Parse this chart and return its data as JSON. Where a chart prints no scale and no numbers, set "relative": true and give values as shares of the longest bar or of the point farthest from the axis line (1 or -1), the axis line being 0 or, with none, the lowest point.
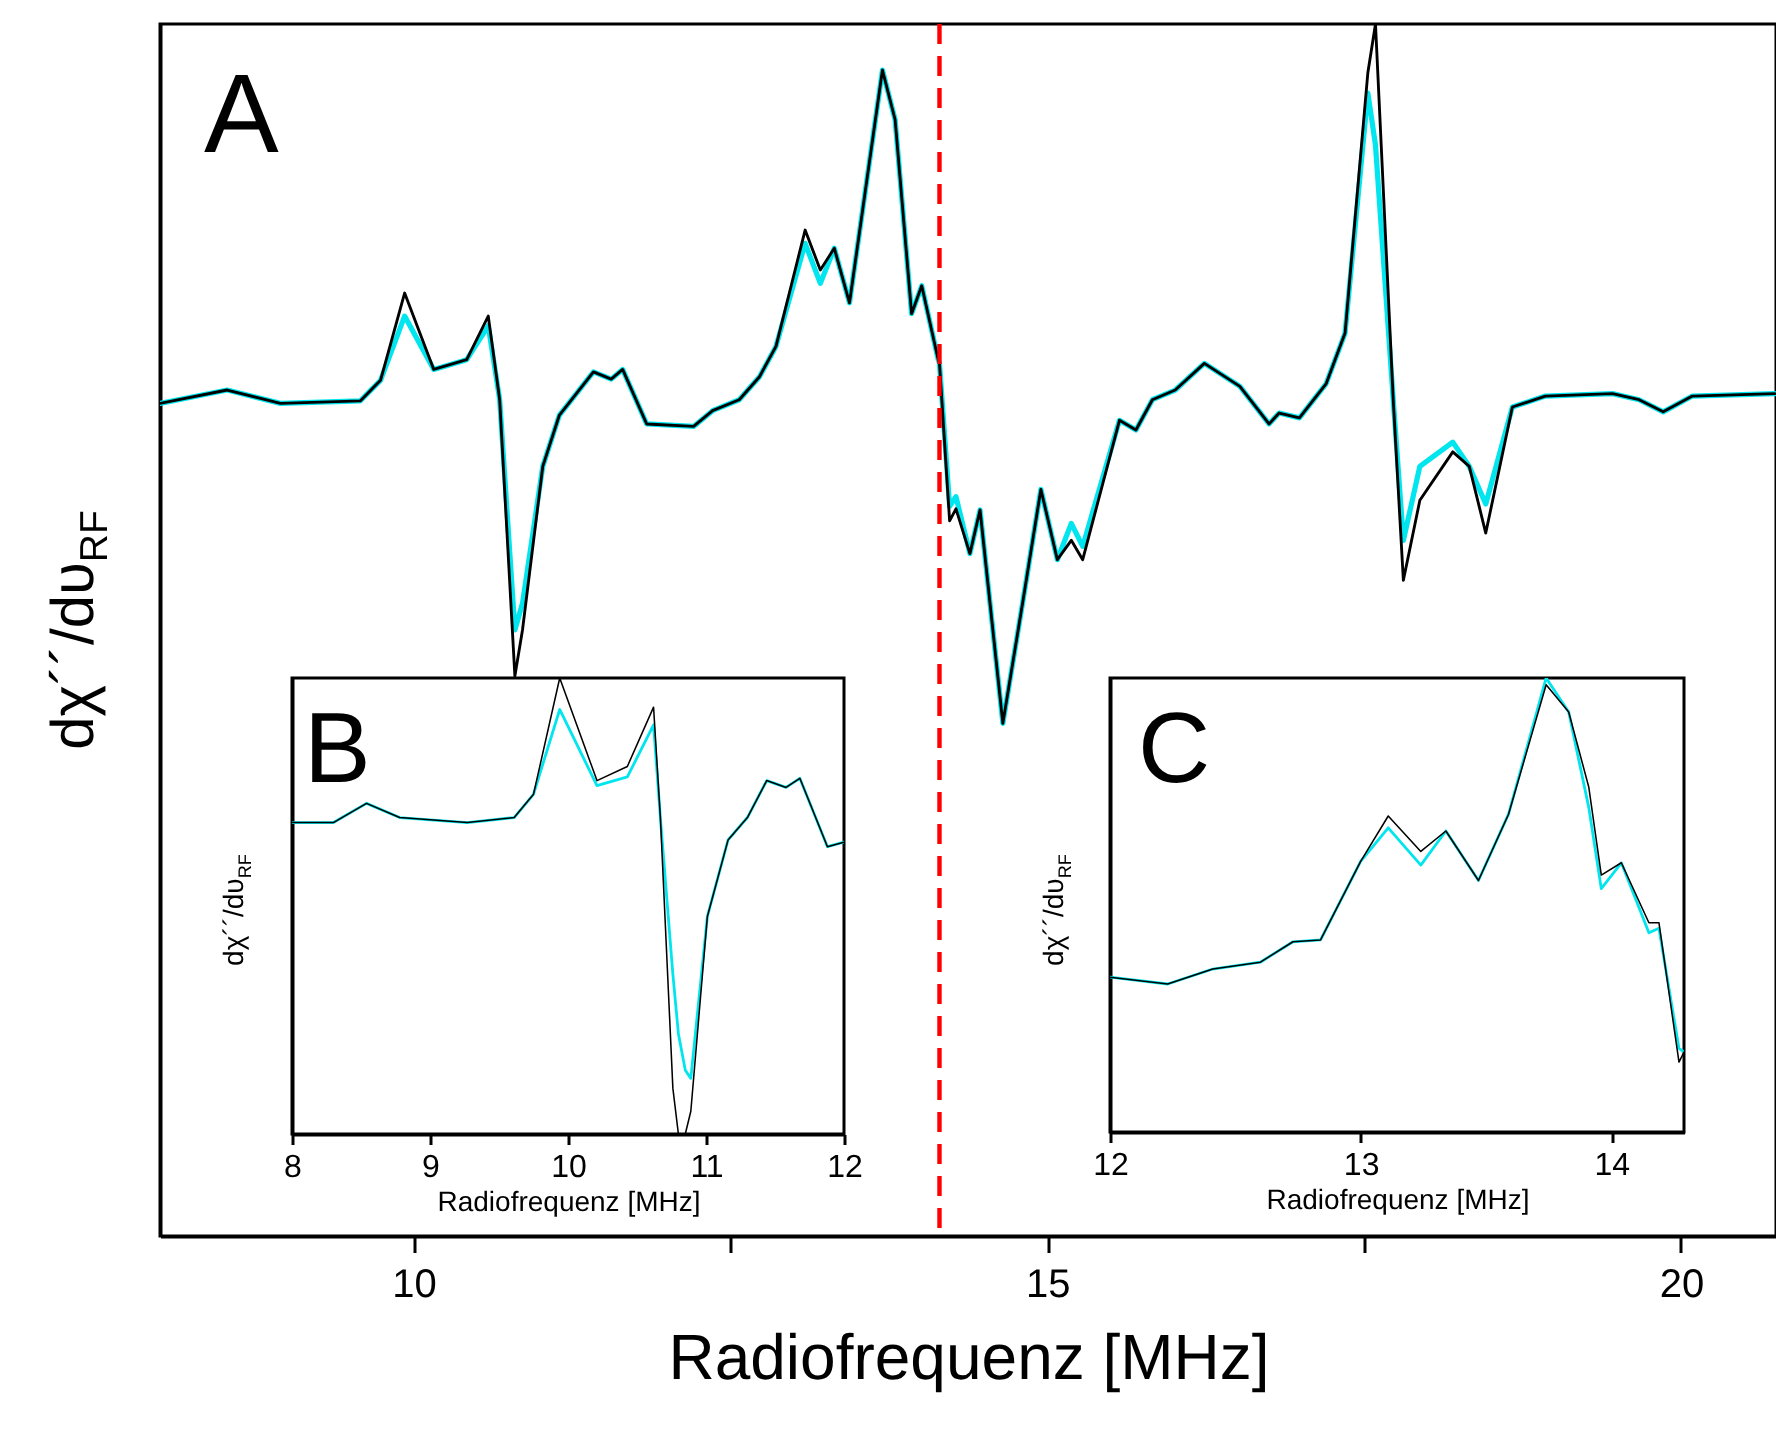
{
  "chart_data": [
    {
      "type": "line",
      "relative": true,
      "xlabel": "Radiofrequenz [MHz]",
      "ylabel": "dχ´´/dυ$_{RF}$",
      "annotations": [
        "A"
      ],
      "xlim": [
        8,
        20.75
      ],
      "xticks": [
        10,
        {
          "value": 12.5,
          "label": null
        },
        15,
        {
          "value": 17.5,
          "label": null
        },
        20
      ],
      "ref_lines": [
        {
          "axis": "x",
          "value": 14.15,
          "color": "#ff0000",
          "line_style": "dashed"
        }
      ],
      "series": [
        {
          "color": "#000000",
          "x": [
            8.0,
            8.53,
            8.95,
            9.58,
            9.74,
            9.93,
            10.16,
            10.42,
            10.59,
            10.68,
            10.8,
            10.86,
            11.02,
            11.15,
            11.42,
            11.56,
            11.65,
            11.84,
            12.21,
            12.36,
            12.57,
            12.73,
            12.86,
            13.09,
            13.21,
            13.32,
            13.44,
            13.57,
            13.7,
            13.8,
            13.93,
            14.01,
            14.14,
            14.15,
            14.23,
            14.28,
            14.39,
            14.47,
            14.65,
            14.81,
            14.95,
            15.08,
            15.19,
            15.28,
            15.57,
            15.7,
            15.83,
            16.01,
            16.24,
            16.52,
            16.75,
            16.83,
            16.99,
            17.2,
            17.35,
            17.53,
            17.59,
            17.73,
            17.81,
            17.94,
            18.2,
            18.33,
            18.46,
            18.67,
            18.93,
            19.46,
            19.67,
            19.86,
            20.09,
            20.74
          ],
          "values": [
            0.687,
            0.698,
            0.687,
            0.689,
            0.706,
            0.778,
            0.715,
            0.723,
            0.759,
            0.69,
            0.462,
            0.5,
            0.635,
            0.677,
            0.713,
            0.707,
            0.715,
            0.67,
            0.668,
            0.681,
            0.69,
            0.709,
            0.734,
            0.83,
            0.797,
            0.815,
            0.77,
            0.866,
            0.962,
            0.921,
            0.761,
            0.784,
            0.723,
            0.72,
            0.59,
            0.6,
            0.563,
            0.599,
            0.423,
            0.525,
            0.616,
            0.558,
            0.574,
            0.558,
            0.673,
            0.665,
            0.69,
            0.698,
            0.72,
            0.701,
            0.67,
            0.679,
            0.675,
            0.703,
            0.745,
            0.96,
            1.0,
            0.69,
            0.541,
            0.607,
            0.647,
            0.635,
            0.58,
            0.684,
            0.693,
            0.695,
            0.69,
            0.68,
            0.693,
            0.695
          ]
        },
        {
          "color": "#00e5ee",
          "x": [
            8.0,
            8.53,
            8.95,
            9.58,
            9.74,
            9.93,
            10.16,
            10.42,
            10.59,
            10.68,
            10.8,
            10.86,
            11.02,
            11.15,
            11.42,
            11.56,
            11.65,
            11.84,
            12.21,
            12.36,
            12.57,
            12.73,
            12.86,
            13.09,
            13.21,
            13.32,
            13.44,
            13.57,
            13.7,
            13.8,
            13.93,
            14.01,
            14.14,
            14.15,
            14.23,
            14.28,
            14.39,
            14.47,
            14.65,
            14.81,
            14.95,
            15.08,
            15.19,
            15.28,
            15.57,
            15.7,
            15.83,
            16.01,
            16.24,
            16.52,
            16.75,
            16.83,
            16.99,
            17.2,
            17.35,
            17.53,
            17.59,
            17.73,
            17.81,
            17.94,
            18.2,
            18.33,
            18.46,
            18.67,
            18.93,
            19.46,
            19.67,
            19.86,
            20.09,
            20.74
          ],
          "values": [
            0.687,
            0.698,
            0.687,
            0.689,
            0.706,
            0.759,
            0.715,
            0.723,
            0.751,
            0.69,
            0.5,
            0.522,
            0.635,
            0.677,
            0.713,
            0.707,
            0.715,
            0.67,
            0.668,
            0.681,
            0.69,
            0.709,
            0.734,
            0.819,
            0.786,
            0.815,
            0.77,
            0.866,
            0.962,
            0.921,
            0.761,
            0.784,
            0.723,
            0.72,
            0.602,
            0.61,
            0.563,
            0.599,
            0.423,
            0.525,
            0.616,
            0.558,
            0.588,
            0.569,
            0.673,
            0.665,
            0.69,
            0.698,
            0.72,
            0.701,
            0.67,
            0.679,
            0.675,
            0.703,
            0.745,
            0.943,
            0.9,
            0.69,
            0.574,
            0.635,
            0.655,
            0.635,
            0.604,
            0.684,
            0.693,
            0.695,
            0.69,
            0.68,
            0.693,
            0.695
          ]
        }
      ]
    },
    {
      "type": "line",
      "relative": true,
      "xlabel": "Radiofrequenz [MHz]",
      "ylabel": "dχ´´/dυ$_{RF}$",
      "annotations": [
        "B"
      ],
      "xlim": [
        8,
        12
      ],
      "xticks": [
        8,
        9,
        10,
        11,
        12
      ],
      "series": [
        {
          "color": "#000000",
          "x": [
            8.0,
            8.3,
            8.54,
            8.78,
            9.27,
            9.61,
            9.75,
            9.94,
            10.21,
            10.43,
            10.62,
            10.67,
            10.76,
            10.8,
            10.85,
            10.89,
            11.01,
            11.16,
            11.3,
            11.44,
            11.58,
            11.68,
            11.88,
            12.0
          ],
          "values": [
            0.683,
            0.683,
            0.725,
            0.694,
            0.683,
            0.694,
            0.745,
            1.0,
            0.775,
            0.806,
            0.936,
            0.691,
            0.1,
            0,
            0,
            0.05,
            0.477,
            0.645,
            0.694,
            0.775,
            0.76,
            0.78,
            0.63,
            0.64
          ]
        },
        {
          "color": "#00e5ee",
          "x": [
            8.0,
            8.3,
            8.54,
            8.78,
            9.27,
            9.61,
            9.75,
            9.94,
            10.21,
            10.43,
            10.62,
            10.67,
            10.76,
            10.8,
            10.85,
            10.89,
            11.01,
            11.16,
            11.3,
            11.44,
            11.58,
            11.68,
            11.88,
            12.0
          ],
          "values": [
            0.683,
            0.683,
            0.725,
            0.694,
            0.683,
            0.694,
            0.745,
            0.931,
            0.764,
            0.783,
            0.897,
            0.691,
            0.35,
            0.22,
            0.14,
            0.122,
            0.477,
            0.645,
            0.694,
            0.775,
            0.76,
            0.78,
            0.63,
            0.64
          ]
        }
      ]
    },
    {
      "type": "line",
      "relative": true,
      "xlabel": "Radiofrequenz [MHz]",
      "ylabel": "dχ´´/dυ$_{RF}$",
      "annotations": [
        "C"
      ],
      "xlim": [
        12,
        14.29
      ],
      "xticks": [
        12,
        13,
        14
      ],
      "series": [
        {
          "color": "#000000",
          "x": [
            12.0,
            12.23,
            12.41,
            12.6,
            12.73,
            12.84,
            13.0,
            13.11,
            13.24,
            13.34,
            13.47,
            13.59,
            13.74,
            13.83,
            13.91,
            13.96,
            14.04,
            14.15,
            14.19,
            14.27,
            14.29
          ],
          "values": [
            0.341,
            0.326,
            0.359,
            0.374,
            0.419,
            0.423,
            0.596,
            0.696,
            0.618,
            0.663,
            0.554,
            0.7,
            0.985,
            0.925,
            0.76,
            0.566,
            0.593,
            0.461,
            0.461,
            0.154,
            0.176
          ]
        },
        {
          "color": "#00e5ee",
          "x": [
            12.0,
            12.23,
            12.41,
            12.6,
            12.73,
            12.84,
            13.0,
            13.11,
            13.24,
            13.34,
            13.47,
            13.59,
            13.74,
            13.83,
            13.91,
            13.96,
            14.04,
            14.15,
            14.19,
            14.27,
            14.29
          ],
          "values": [
            0.341,
            0.326,
            0.359,
            0.374,
            0.419,
            0.423,
            0.596,
            0.67,
            0.588,
            0.663,
            0.554,
            0.7,
            1.0,
            0.925,
            0.715,
            0.536,
            0.593,
            0.439,
            0.449,
            0.184,
            0.176
          ]
        }
      ]
    }
  ]
}
